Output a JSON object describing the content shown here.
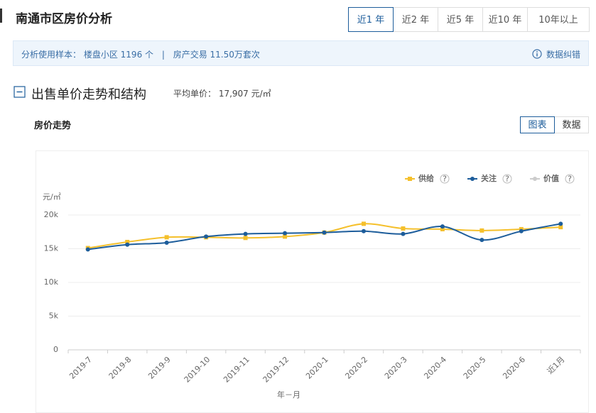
{
  "header": {
    "title": "南通市区房价分析",
    "tabs": [
      "近1 年",
      "近2 年",
      "近5 年",
      "近10 年",
      "10年以上"
    ]
  },
  "info": {
    "label": "分析使用样本：",
    "sample": "楼盘小区 1196 个",
    "separator": "|",
    "trades": "房产交易 11.50万套次",
    "correction": "数据纠错"
  },
  "section": {
    "title": "出售单价走势和结构",
    "average": "平均单价： 17,907 元/㎡",
    "subtitle": "房价走势",
    "views": [
      "图表",
      "数据"
    ]
  },
  "chart_data": {
    "type": "line",
    "y_label": "元/㎡",
    "x_label": "年－月",
    "legend": "top-right",
    "legend_help": "?",
    "grid": true,
    "categories": [
      "2019-7",
      "2019-8",
      "2019-9",
      "2019-10",
      "2019-11",
      "2019-12",
      "2020-1",
      "2020-2",
      "2020-3",
      "2020-4",
      "2020-5",
      "2020-6",
      "近1月"
    ],
    "series": [
      {
        "name": "供给",
        "color": "#f5c02c",
        "marker": "square",
        "values": [
          15100,
          16000,
          16700,
          16700,
          16600,
          16800,
          17400,
          18700,
          18000,
          17900,
          17700,
          17900,
          18200
        ]
      },
      {
        "name": "关注",
        "color": "#1d5d9b",
        "marker": "circle",
        "values": [
          14900,
          15600,
          15900,
          16800,
          17200,
          17300,
          17400,
          17600,
          17200,
          18300,
          16300,
          17600,
          18700
        ]
      },
      {
        "name": "价值",
        "color": "#cccccc",
        "marker": "circle",
        "values": [
          null,
          null,
          null,
          null,
          null,
          null,
          null,
          null,
          null,
          null,
          null,
          null,
          null
        ]
      }
    ],
    "ylim": [
      0,
      20000
    ],
    "yticks": [
      0,
      {
        "value": 5000,
        "label": "5k"
      },
      {
        "value": 10000,
        "label": "10k"
      },
      {
        "value": 15000,
        "label": "15k"
      },
      {
        "value": 20000,
        "label": "20k"
      }
    ]
  }
}
